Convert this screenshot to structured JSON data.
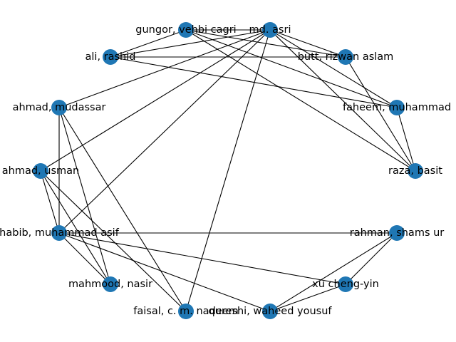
{
  "graph": {
    "node_color": "#1f77b4",
    "edge_color": "#000000",
    "nodes": [
      {
        "id": "gungor",
        "label": "gungor, vehbi cagri"
      },
      {
        "id": "asri",
        "label": "md. asri"
      },
      {
        "id": "ali",
        "label": "ali, rashid"
      },
      {
        "id": "butt",
        "label": "butt, rizwan aslam"
      },
      {
        "id": "mudassar",
        "label": "ahmad, mudassar"
      },
      {
        "id": "faheem",
        "label": "faheem, muhammad"
      },
      {
        "id": "usman",
        "label": "ahmad, usman"
      },
      {
        "id": "raza",
        "label": "raza, basit"
      },
      {
        "id": "habib",
        "label": "habib, muhammad asif"
      },
      {
        "id": "rahman",
        "label": "rahman, shams ur"
      },
      {
        "id": "mahmood",
        "label": "mahmood, nasir"
      },
      {
        "id": "xu",
        "label": "xu cheng-yin"
      },
      {
        "id": "faisal",
        "label": "faisal, c. m. nadeem"
      },
      {
        "id": "qureshi",
        "label": "qureshi, waheed yousuf"
      }
    ],
    "edges": [
      [
        "gungor",
        "ali"
      ],
      [
        "gungor",
        "asri"
      ],
      [
        "gungor",
        "butt"
      ],
      [
        "gungor",
        "faheem"
      ],
      [
        "gungor",
        "raza"
      ],
      [
        "asri",
        "ali"
      ],
      [
        "asri",
        "butt"
      ],
      [
        "asri",
        "faheem"
      ],
      [
        "asri",
        "raza"
      ],
      [
        "asri",
        "mudassar"
      ],
      [
        "asri",
        "usman"
      ],
      [
        "asri",
        "habib"
      ],
      [
        "asri",
        "faisal"
      ],
      [
        "ali",
        "butt"
      ],
      [
        "ali",
        "faheem"
      ],
      [
        "butt",
        "raza"
      ],
      [
        "faheem",
        "raza"
      ],
      [
        "mudassar",
        "habib"
      ],
      [
        "mudassar",
        "mahmood"
      ],
      [
        "mudassar",
        "faisal"
      ],
      [
        "usman",
        "habib"
      ],
      [
        "usman",
        "mahmood"
      ],
      [
        "usman",
        "faisal"
      ],
      [
        "habib",
        "rahman"
      ],
      [
        "habib",
        "xu"
      ],
      [
        "habib",
        "qureshi"
      ],
      [
        "habib",
        "mahmood"
      ],
      [
        "rahman",
        "xu"
      ],
      [
        "rahman",
        "qureshi"
      ],
      [
        "xu",
        "qureshi"
      ]
    ]
  }
}
